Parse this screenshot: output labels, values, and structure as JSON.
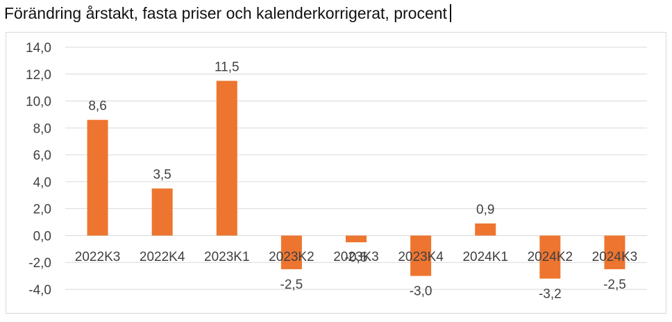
{
  "chart_data": {
    "type": "bar",
    "title": "Förändring årstakt, fasta priser och kalenderkorrigerat, procent",
    "categories": [
      "2022K3",
      "2022K4",
      "2023K1",
      "2023K2",
      "2023K3",
      "2023K4",
      "2024K1",
      "2024K2",
      "2024K3"
    ],
    "series": [
      {
        "values": [
          8.6,
          3.5,
          11.5,
          -2.5,
          -0.5,
          -3.0,
          0.9,
          -3.2,
          -2.5
        ]
      }
    ],
    "data_labels": [
      "8,6",
      "3,5",
      "11,5",
      "-2,5",
      "-0,5",
      "-3,0",
      "0,9",
      "-3,2",
      "-2,5"
    ],
    "ylim": [
      -4,
      14
    ],
    "yticks": [
      -4,
      -2,
      0,
      2,
      4,
      6,
      8,
      10,
      12,
      14
    ],
    "ytick_labels": [
      "-4,0",
      "-2,0",
      "0,0",
      "2,0",
      "4,0",
      "6,0",
      "8,0",
      "10,0",
      "12,0",
      "14,0"
    ],
    "grid": true,
    "legend": "none",
    "colors": {
      "bar": "#ED7530",
      "grid": "#D9D9D9",
      "text": "#404040"
    }
  }
}
